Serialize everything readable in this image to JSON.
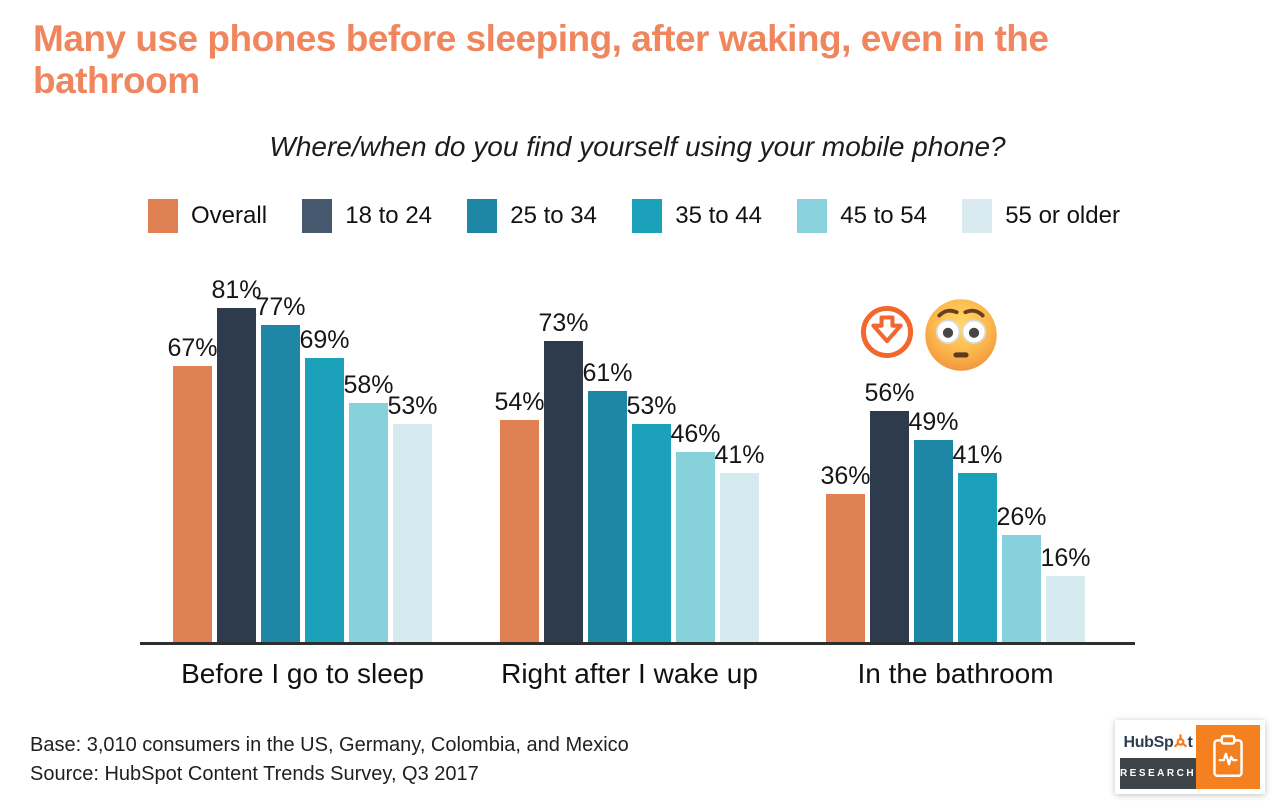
{
  "header": {
    "title_line1": "Many use phones before sleeping, after waking, even in the",
    "title_line2": "bathroom",
    "title_color": "#F0865E"
  },
  "chart_data": {
    "type": "bar",
    "title": "Where/when do you find yourself using your mobile phone?",
    "categories": [
      "Before I go to sleep",
      "Right after I wake up",
      "In the bathroom"
    ],
    "series": [
      {
        "name": "Overall",
        "color": "#E08153",
        "legend_color": "#E08153",
        "values": [
          67,
          54,
          36
        ]
      },
      {
        "name": "18 to 24",
        "color": "#2D3B4D",
        "legend_color": "#47596F",
        "values": [
          81,
          73,
          56
        ]
      },
      {
        "name": "25 to 34",
        "color": "#1E87A5",
        "legend_color": "#1E87A5",
        "values": [
          77,
          61,
          49
        ]
      },
      {
        "name": "35 to 44",
        "color": "#1BA1BA",
        "legend_color": "#1BA1BA",
        "values": [
          69,
          53,
          41
        ]
      },
      {
        "name": "45 to 54",
        "color": "#87D1DD",
        "legend_color": "#8AD2DE",
        "values": [
          58,
          46,
          26
        ]
      },
      {
        "name": "55 or older",
        "color": "#D5EBF0",
        "legend_color": "#D9EBF0",
        "values": [
          53,
          41,
          16
        ]
      }
    ],
    "value_suffix": "%",
    "ylim": [
      0,
      100
    ],
    "grid": false,
    "legend_position": "top",
    "axis_color": "#2e2e2e",
    "annotations": [
      "circled-down-arrow-icon",
      "flushed-face-emoji"
    ]
  },
  "icons": {
    "circled_down_arrow_color": "#F2672E",
    "sprocket_color": "#F57E20",
    "clipboard_pulse": "white outline clipboard with pulse line"
  },
  "footer": {
    "base": "Base: 3,010 consumers in the US, Germany, Colombia, and Mexico",
    "source": "Source: HubSpot Content Trends Survey, Q3 2017"
  },
  "logo": {
    "brand_pre": "HubSp",
    "brand_post": "t",
    "research": "RESEARCH",
    "orange": "#F58020",
    "navy": "#2D3E50",
    "box_gray": "#3F4449"
  }
}
